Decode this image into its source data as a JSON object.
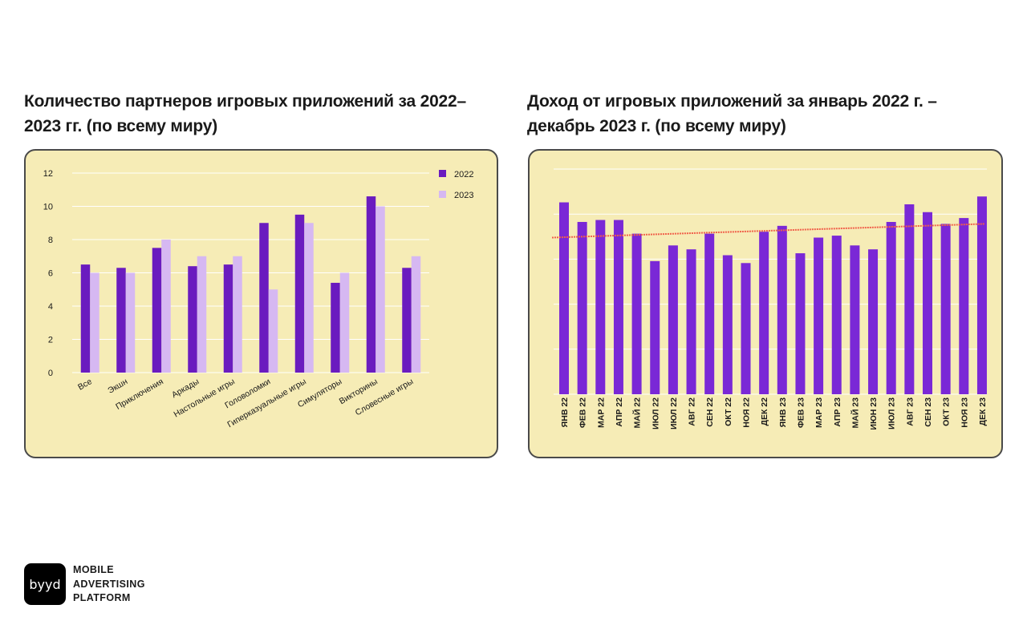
{
  "brand": {
    "logo_text": "byyd",
    "tagline": [
      "MOBILE",
      "ADVERTISING",
      "PLATFORM"
    ]
  },
  "colors": {
    "card_bg": "#f6ecb6",
    "series_2022": "#6a1bbf",
    "series_2023": "#d6b8f2",
    "revenue_bar": "#7a28d6",
    "trend_line": "#f0604a"
  },
  "chart_data": [
    {
      "type": "bar",
      "title": "Количество партнеров игровых приложений за 2022–2023 гг. (по всему миру)",
      "categories": [
        "Все",
        "Экшн",
        "Приключения",
        "Аркады",
        "Настольные игры",
        "Головоломки",
        "Гиперказуальные игры",
        "Симуляторы",
        "Викторины",
        "Словесные игры"
      ],
      "series": [
        {
          "name": "2022",
          "values": [
            6.5,
            6.3,
            7.5,
            6.4,
            6.5,
            9.0,
            9.5,
            5.4,
            10.6,
            6.3
          ]
        },
        {
          "name": "2023",
          "values": [
            6.0,
            6.0,
            8.0,
            7.0,
            7.0,
            5.0,
            9.0,
            6.0,
            10.0,
            7.0
          ]
        }
      ],
      "yticks": [
        0,
        2,
        4,
        6,
        8,
        10,
        12
      ],
      "ylim": [
        0,
        12
      ],
      "legend": "top-right",
      "grid": true
    },
    {
      "type": "bar",
      "title": "Доход от игровых приложений за январь 2022 г. – декабрь 2023 г. (по всему миру)",
      "categories": [
        "ЯНВ 22",
        "ФЕВ 22",
        "МАР 22",
        "АПР 22",
        "МАЙ 22",
        "ИЮЛ 22",
        "ИЮЛ 22",
        "АВГ 22",
        "СЕН 22",
        "ОКТ 22",
        "НОЯ 22",
        "ДЕК 22",
        "ЯНВ 23",
        "ФЕВ 23",
        "МАР 23",
        "АПР 23",
        "МАЙ 23",
        "ИЮН 23",
        "ИЮЛ 23",
        "АВГ 23",
        "СЕН 23",
        "ОКТ 23",
        "НОЯ 23",
        "ДЕК 23"
      ],
      "values": [
        9.8,
        8.8,
        8.9,
        8.9,
        8.2,
        6.8,
        7.6,
        7.4,
        8.2,
        7.1,
        6.7,
        8.3,
        8.6,
        7.2,
        8.0,
        8.1,
        7.6,
        7.4,
        8.8,
        9.7,
        9.3,
        8.7,
        9.0,
        10.1
      ],
      "trend": {
        "start": 8.0,
        "end": 8.7
      },
      "ylim": [
        0,
        11.5
      ],
      "grid": true
    }
  ]
}
